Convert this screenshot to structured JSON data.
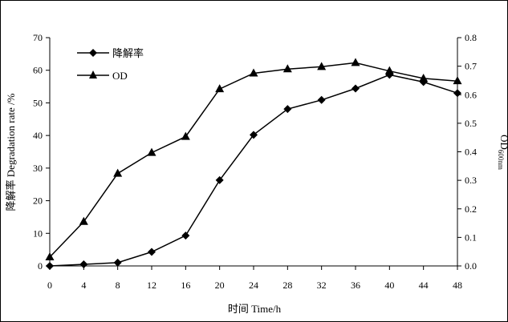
{
  "chart_data": {
    "type": "line",
    "x": [
      0,
      4,
      8,
      12,
      16,
      20,
      24,
      28,
      32,
      36,
      40,
      44,
      48
    ],
    "xlabel": "时间 Time/h",
    "ylabel_left": "降解率 Degradation rate /%",
    "ylabel_right_main": "OD",
    "ylabel_right_sub": "600nm",
    "xlim": [
      0,
      48
    ],
    "ylim_left": [
      0,
      70
    ],
    "ylim_right": [
      0,
      0.8
    ],
    "x_ticks": [
      "0",
      "4",
      "8",
      "12",
      "16",
      "20",
      "24",
      "28",
      "32",
      "36",
      "40",
      "44",
      "48"
    ],
    "y_left_ticks": [
      "0",
      "10",
      "20",
      "30",
      "40",
      "50",
      "60",
      "70"
    ],
    "y_right_ticks": [
      "0.0",
      "0.1",
      "0.2",
      "0.3",
      "0.4",
      "0.5",
      "0.6",
      "0.7",
      "0.8"
    ],
    "grid": false,
    "legend_position": "top-left",
    "series": [
      {
        "name": "降解率",
        "axis": "left",
        "marker": "diamond",
        "values": [
          0.0,
          0.5,
          1.0,
          4.3,
          9.3,
          26.3,
          40.2,
          48.1,
          50.9,
          54.4,
          58.6,
          56.4,
          53.0
        ]
      },
      {
        "name": "OD",
        "axis": "right",
        "marker": "triangle",
        "values": [
          0.031,
          0.155,
          0.324,
          0.397,
          0.453,
          0.62,
          0.675,
          0.69,
          0.698,
          0.712,
          0.683,
          0.657,
          0.648
        ]
      }
    ]
  }
}
